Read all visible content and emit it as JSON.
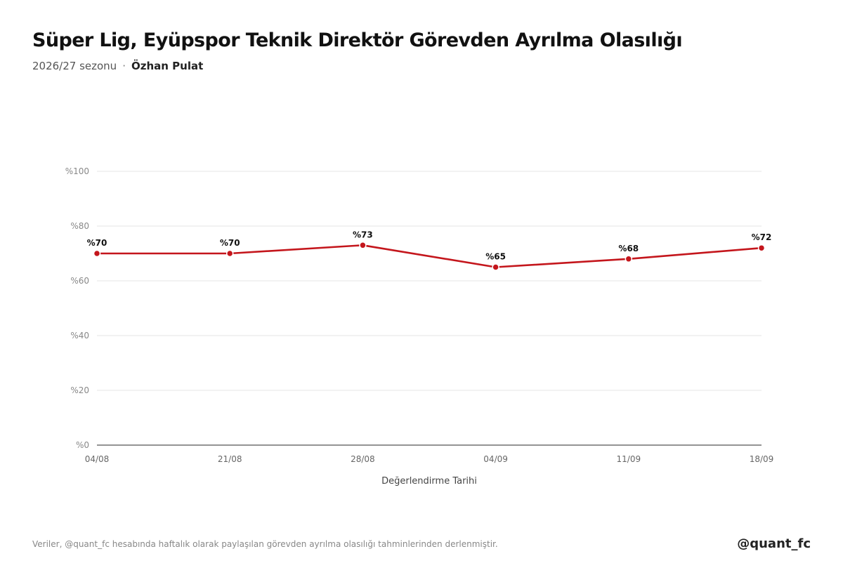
{
  "header": {
    "title": "Süper Lig, Eyüpspor Teknik Direktör Görevden Ayrılma Olasılığı",
    "season": "2026/27 sezonu",
    "separator": "·",
    "coach": "Özhan Pulat"
  },
  "chart_data": {
    "type": "line",
    "title": "Süper Lig, Eyüpspor Teknik Direktör Görevden Ayrılma Olasılığı",
    "xlabel": "Değerlendirme Tarihi",
    "ylabel": "",
    "categories": [
      "04/08",
      "21/08",
      "28/08",
      "04/09",
      "11/09",
      "18/09"
    ],
    "series": [
      {
        "values": [
          70,
          70,
          73,
          65,
          68,
          72
        ]
      }
    ],
    "data_labels": [
      "%70",
      "%70",
      "%73",
      "%65",
      "%68",
      "%72"
    ],
    "ylim": [
      0,
      100
    ],
    "yticks": [
      0,
      20,
      40,
      60,
      80,
      100
    ],
    "ytick_labels": [
      "%0",
      "%20",
      "%40",
      "%60",
      "%80",
      "%100"
    ],
    "grid": true,
    "line_color": "#c4161c"
  },
  "footer": {
    "note": "Veriler, @quant_fc hesabında haftalık olarak paylaşılan görevden ayrılma olasılığı tahminlerinden derlenmiştir.",
    "handle": "@quant_fc"
  }
}
